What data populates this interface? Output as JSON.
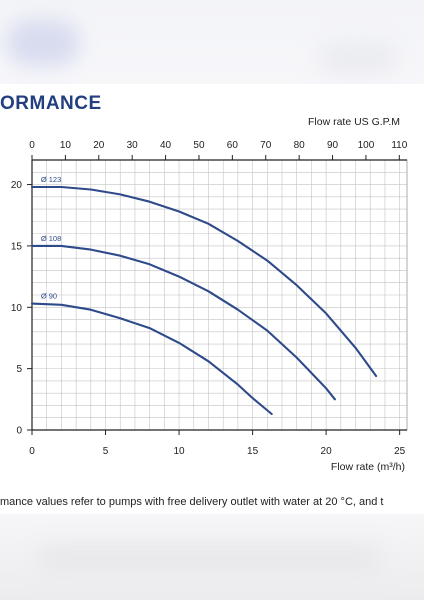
{
  "heading": "ORMANCE",
  "footnote": "mance values refer to pumps with free delivery outlet with water at 20 °C, and t",
  "colors": {
    "heading": "#233f80",
    "curve": "#2f4a8a",
    "grid": "#c4c4c4"
  },
  "chart_data": {
    "type": "line",
    "title": "",
    "xlabel": "Flow rate  (m³/h)",
    "x2label": "Flow rate US  G.P.M",
    "ylabel": "",
    "xlim": [
      0,
      25.5
    ],
    "ylim": [
      0,
      22
    ],
    "x2lim": [
      0,
      112.3
    ],
    "x_ticks": [
      "0",
      "5",
      "10",
      "15",
      "20",
      "25"
    ],
    "x2_ticks": [
      "0",
      "10",
      "20",
      "30",
      "40",
      "50",
      "60",
      "70",
      "80",
      "90",
      "100",
      "110"
    ],
    "y_ticks": [
      "0",
      "5",
      "10",
      "15",
      "20"
    ],
    "grid": true,
    "legend": "none",
    "series": [
      {
        "name": "Ø 123",
        "x": [
          0,
          2,
          4,
          6,
          8,
          10,
          12,
          14,
          16,
          18,
          20,
          22,
          23.4
        ],
        "y": [
          19.8,
          19.8,
          19.6,
          19.2,
          18.6,
          17.8,
          16.8,
          15.4,
          13.8,
          11.8,
          9.5,
          6.7,
          4.4
        ]
      },
      {
        "name": "Ø 108",
        "x": [
          0,
          2,
          4,
          6,
          8,
          10,
          12,
          14,
          16,
          18,
          20,
          20.6
        ],
        "y": [
          15.0,
          15.0,
          14.7,
          14.2,
          13.5,
          12.5,
          11.3,
          9.8,
          8.1,
          5.9,
          3.4,
          2.5
        ]
      },
      {
        "name": "Ø 90",
        "x": [
          0,
          2,
          4,
          6,
          8,
          10,
          12,
          14,
          15,
          16.3
        ],
        "y": [
          10.3,
          10.2,
          9.8,
          9.1,
          8.3,
          7.1,
          5.6,
          3.7,
          2.6,
          1.3
        ]
      }
    ]
  }
}
